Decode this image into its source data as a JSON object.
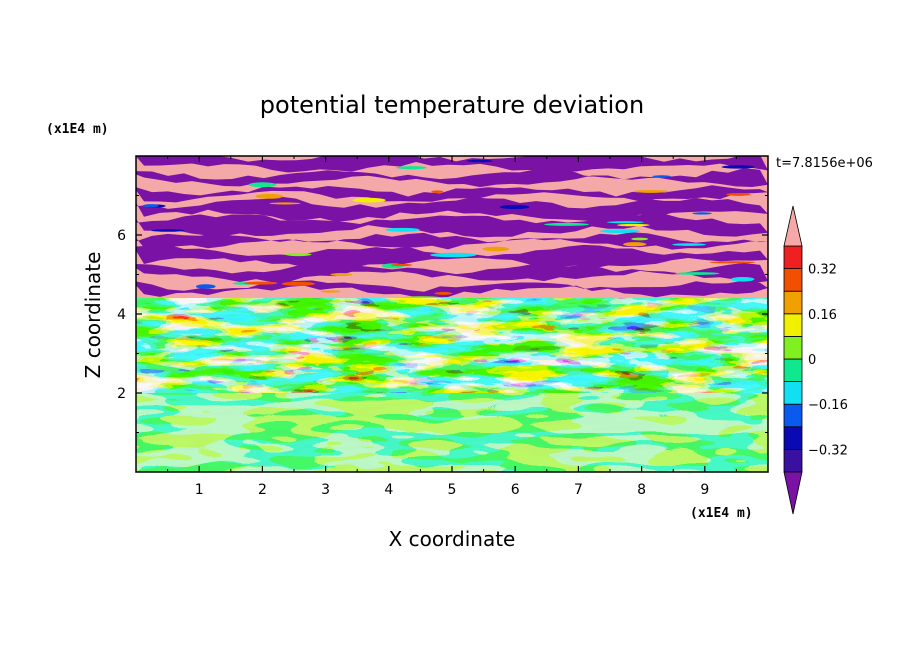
{
  "chart_data": {
    "type": "heatmap",
    "title": "potential temperature deviation",
    "xlabel": "X coordinate",
    "ylabel": "Z coordinate",
    "x_unit": "(x1E4 m)",
    "y_unit": "(x1E4 m)",
    "time_label": "t=7.8156e+06",
    "xlim": [
      0,
      10
    ],
    "ylim": [
      0,
      8
    ],
    "x_ticks": [
      "1",
      "2",
      "3",
      "4",
      "5",
      "6",
      "7",
      "8",
      "9"
    ],
    "y_ticks": [
      "2",
      "4",
      "6"
    ],
    "colorbar": {
      "levels": [
        -0.4,
        -0.32,
        -0.24,
        -0.16,
        -0.08,
        0,
        0.08,
        0.16,
        0.24,
        0.32,
        0.4
      ],
      "tick_labels": [
        "0.32",
        "0.16",
        "0",
        "−0.16",
        "−0.32"
      ],
      "colors": [
        "#7a12a6",
        "#3a10a0",
        "#0a0ab4",
        "#0a5af0",
        "#10e0f0",
        "#10e890",
        "#80f020",
        "#f0f000",
        "#f0a000",
        "#f05000",
        "#f02020",
        "#f4a8a8"
      ],
      "extend": "both"
    },
    "layers": [
      {
        "z_range": [
          0,
          2.0
        ],
        "description": "lower layer near zero to slightly positive",
        "dominant_values": [
          0.0,
          0.08
        ]
      },
      {
        "z_range": [
          2.0,
          4.4
        ],
        "description": "turbulent mixed layer, full value range",
        "dominant_values": [
          -0.4,
          -0.32,
          -0.16,
          0,
          0.16,
          0.32,
          0.4
        ]
      },
      {
        "z_range": [
          4.4,
          8.0
        ],
        "description": "stratified bands alternating between extreme values",
        "dominant_values": [
          -0.4,
          0.4
        ]
      }
    ]
  }
}
